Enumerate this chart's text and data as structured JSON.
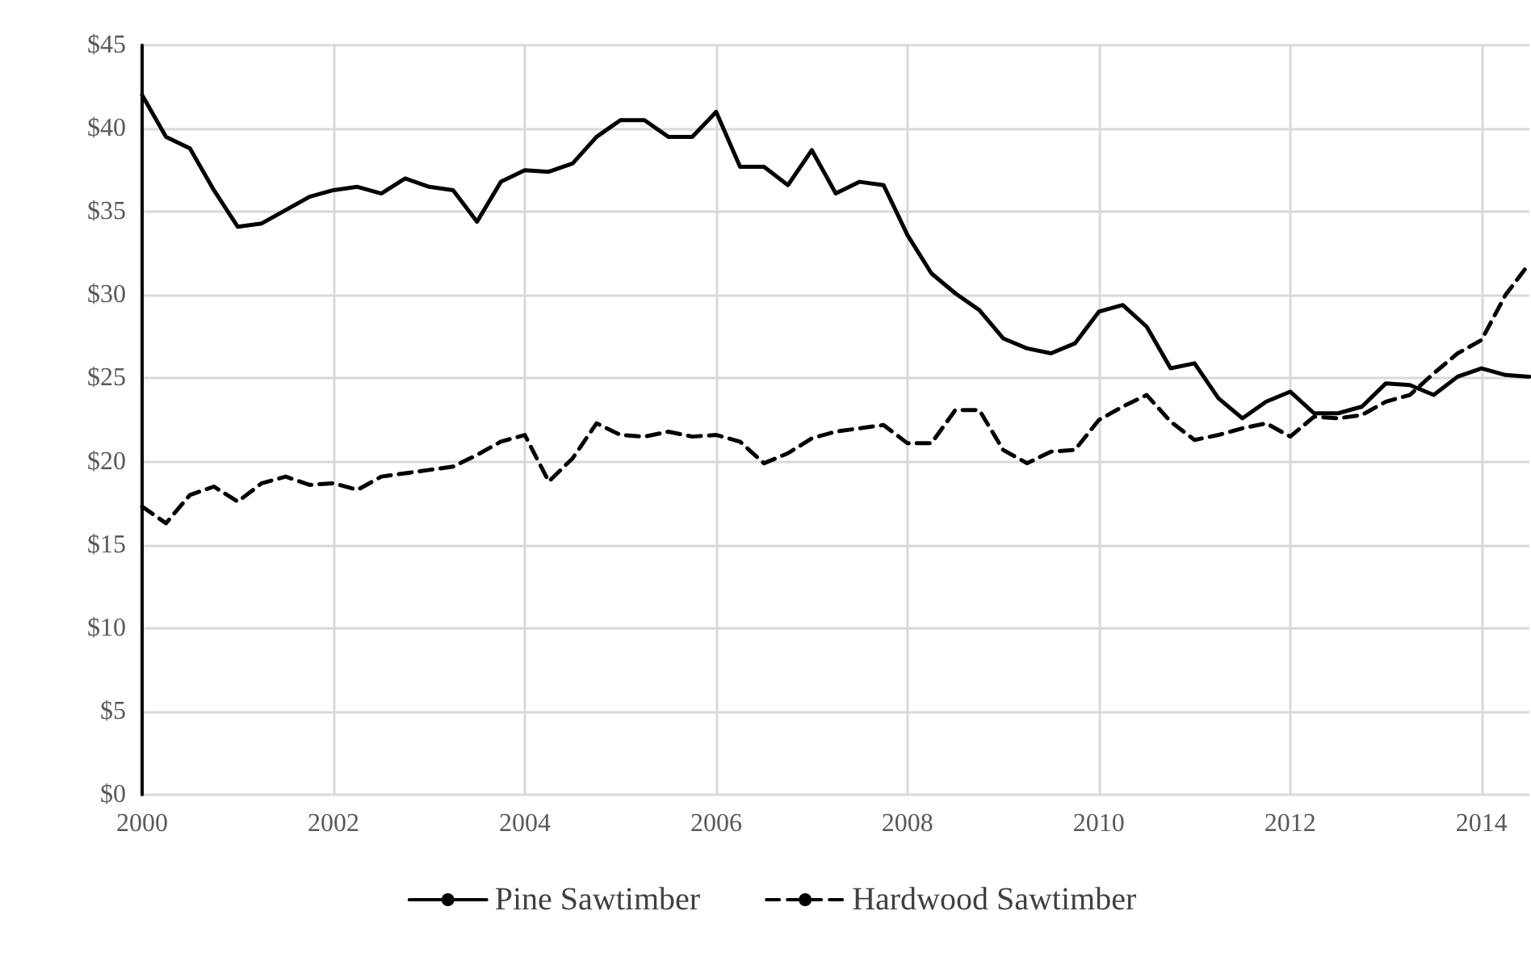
{
  "chart_data": {
    "type": "line",
    "x": [
      2000,
      2000.25,
      2000.5,
      2000.75,
      2001,
      2001.25,
      2001.5,
      2001.75,
      2002,
      2002.25,
      2002.5,
      2002.75,
      2003,
      2003.25,
      2003.5,
      2003.75,
      2004,
      2004.25,
      2004.5,
      2004.75,
      2005,
      2005.25,
      2005.5,
      2005.75,
      2006,
      2006.25,
      2006.5,
      2006.75,
      2007,
      2007.25,
      2007.5,
      2007.75,
      2008,
      2008.25,
      2008.5,
      2008.75,
      2009,
      2009.25,
      2009.5,
      2009.75,
      2010,
      2010.25,
      2010.5,
      2010.75,
      2011,
      2011.25,
      2011.5,
      2011.75,
      2012,
      2012.25,
      2012.5,
      2012.75,
      2013,
      2013.25,
      2013.5,
      2013.75,
      2014,
      2014.25,
      2014.5
    ],
    "series": [
      {
        "name": "Pine Sawtimber",
        "color": "#000000",
        "line_style": "solid",
        "values": [
          42,
          39.5,
          38.8,
          36.3,
          34.1,
          34.3,
          35.1,
          35.9,
          36.3,
          36.5,
          36.1,
          37,
          36.5,
          36.3,
          34.4,
          36.8,
          37.5,
          37.4,
          37.9,
          39.5,
          40.5,
          40.5,
          39.5,
          39.5,
          41,
          37.7,
          37.7,
          36.6,
          38.7,
          36.1,
          36.8,
          36.6,
          33.6,
          31.3,
          30.1,
          29.1,
          27.4,
          26.8,
          26.5,
          27.1,
          29,
          29.4,
          28.1,
          25.6,
          25.9,
          23.8,
          22.6,
          23.6,
          24.2,
          22.9,
          22.9,
          23.3,
          24.7,
          24.6,
          24,
          25.1,
          25.6,
          25.2,
          25.1
        ]
      },
      {
        "name": "Hardwood Sawtimber",
        "color": "#000000",
        "line_style": "dashed",
        "values": [
          17.3,
          16.3,
          18,
          18.5,
          17.6,
          18.7,
          19.1,
          18.6,
          18.7,
          18.3,
          19.1,
          19.3,
          19.5,
          19.7,
          20.4,
          21.2,
          21.6,
          18.8,
          20.2,
          22.3,
          21.6,
          21.5,
          21.8,
          21.5,
          21.6,
          21.2,
          19.9,
          20.5,
          21.4,
          21.8,
          22,
          22.2,
          21.1,
          21.1,
          23.1,
          23.1,
          20.7,
          19.9,
          20.6,
          20.7,
          22.5,
          23.3,
          24,
          22.4,
          21.3,
          21.6,
          22,
          22.3,
          21.5,
          22.7,
          22.6,
          22.8,
          23.6,
          24,
          25.3,
          26.5,
          27.3,
          30,
          31.9
        ]
      }
    ],
    "xlim": [
      2000,
      2014.5
    ],
    "xticks": [
      2000,
      2002,
      2004,
      2006,
      2008,
      2010,
      2012,
      2014
    ],
    "ylim": [
      0,
      45
    ],
    "yticks": [
      {
        "value": 0,
        "label": "$0"
      },
      {
        "value": 5,
        "label": "$5"
      },
      {
        "value": 10,
        "label": "$10"
      },
      {
        "value": 15,
        "label": "$15"
      },
      {
        "value": 20,
        "label": "$20"
      },
      {
        "value": 25,
        "label": "$25"
      },
      {
        "value": 30,
        "label": "$30"
      },
      {
        "value": 35,
        "label": "$35"
      },
      {
        "value": 40,
        "label": "$40"
      },
      {
        "value": 45,
        "label": "$45"
      }
    ],
    "grid": true,
    "legend": "bottom",
    "marker": "none"
  }
}
